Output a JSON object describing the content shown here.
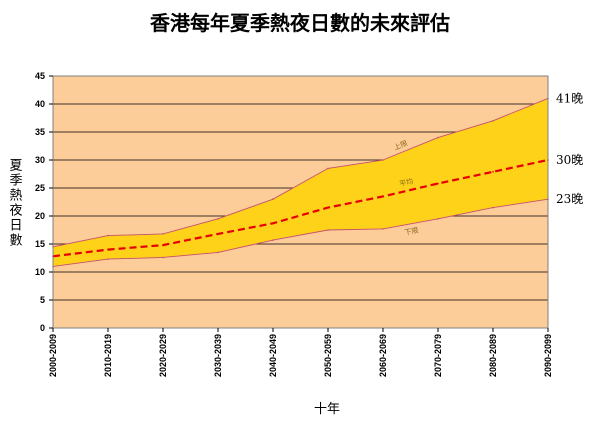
{
  "chart_data": {
    "type": "area",
    "title": "香港每年夏季熱夜日數的未來評估",
    "xlabel": "十年",
    "ylabel": "夏季熱夜日數",
    "ylim": [
      0,
      45
    ],
    "yticks": [
      0,
      5,
      10,
      15,
      20,
      25,
      30,
      35,
      40,
      45
    ],
    "grid": true,
    "categories": [
      "2000-2009",
      "2010-2019",
      "2020-2029",
      "2030-2039",
      "2040-2049",
      "2050-2059",
      "2060-2069",
      "2070-2079",
      "2080-2089",
      "2090-2099"
    ],
    "series": [
      {
        "name": "上限",
        "values": [
          14.5,
          16.5,
          16.8,
          19.5,
          23,
          28.5,
          30,
          34,
          37,
          41
        ]
      },
      {
        "name": "平均",
        "values": [
          12.8,
          14,
          14.8,
          16.8,
          18.7,
          21.5,
          23.5,
          25.8,
          27.9,
          30
        ]
      },
      {
        "name": "下限",
        "values": [
          11,
          12.3,
          12.6,
          13.5,
          15.7,
          17.5,
          17.7,
          19.5,
          21.5,
          23
        ]
      }
    ],
    "end_labels": [
      "41晚",
      "30晚",
      "23晚"
    ],
    "colors": {
      "plot_bg": "#FCCC99",
      "band_fill": "#FFD21A",
      "mean_line": "#E60000",
      "bound_line": "#C8506E",
      "grid": "#000000"
    }
  }
}
